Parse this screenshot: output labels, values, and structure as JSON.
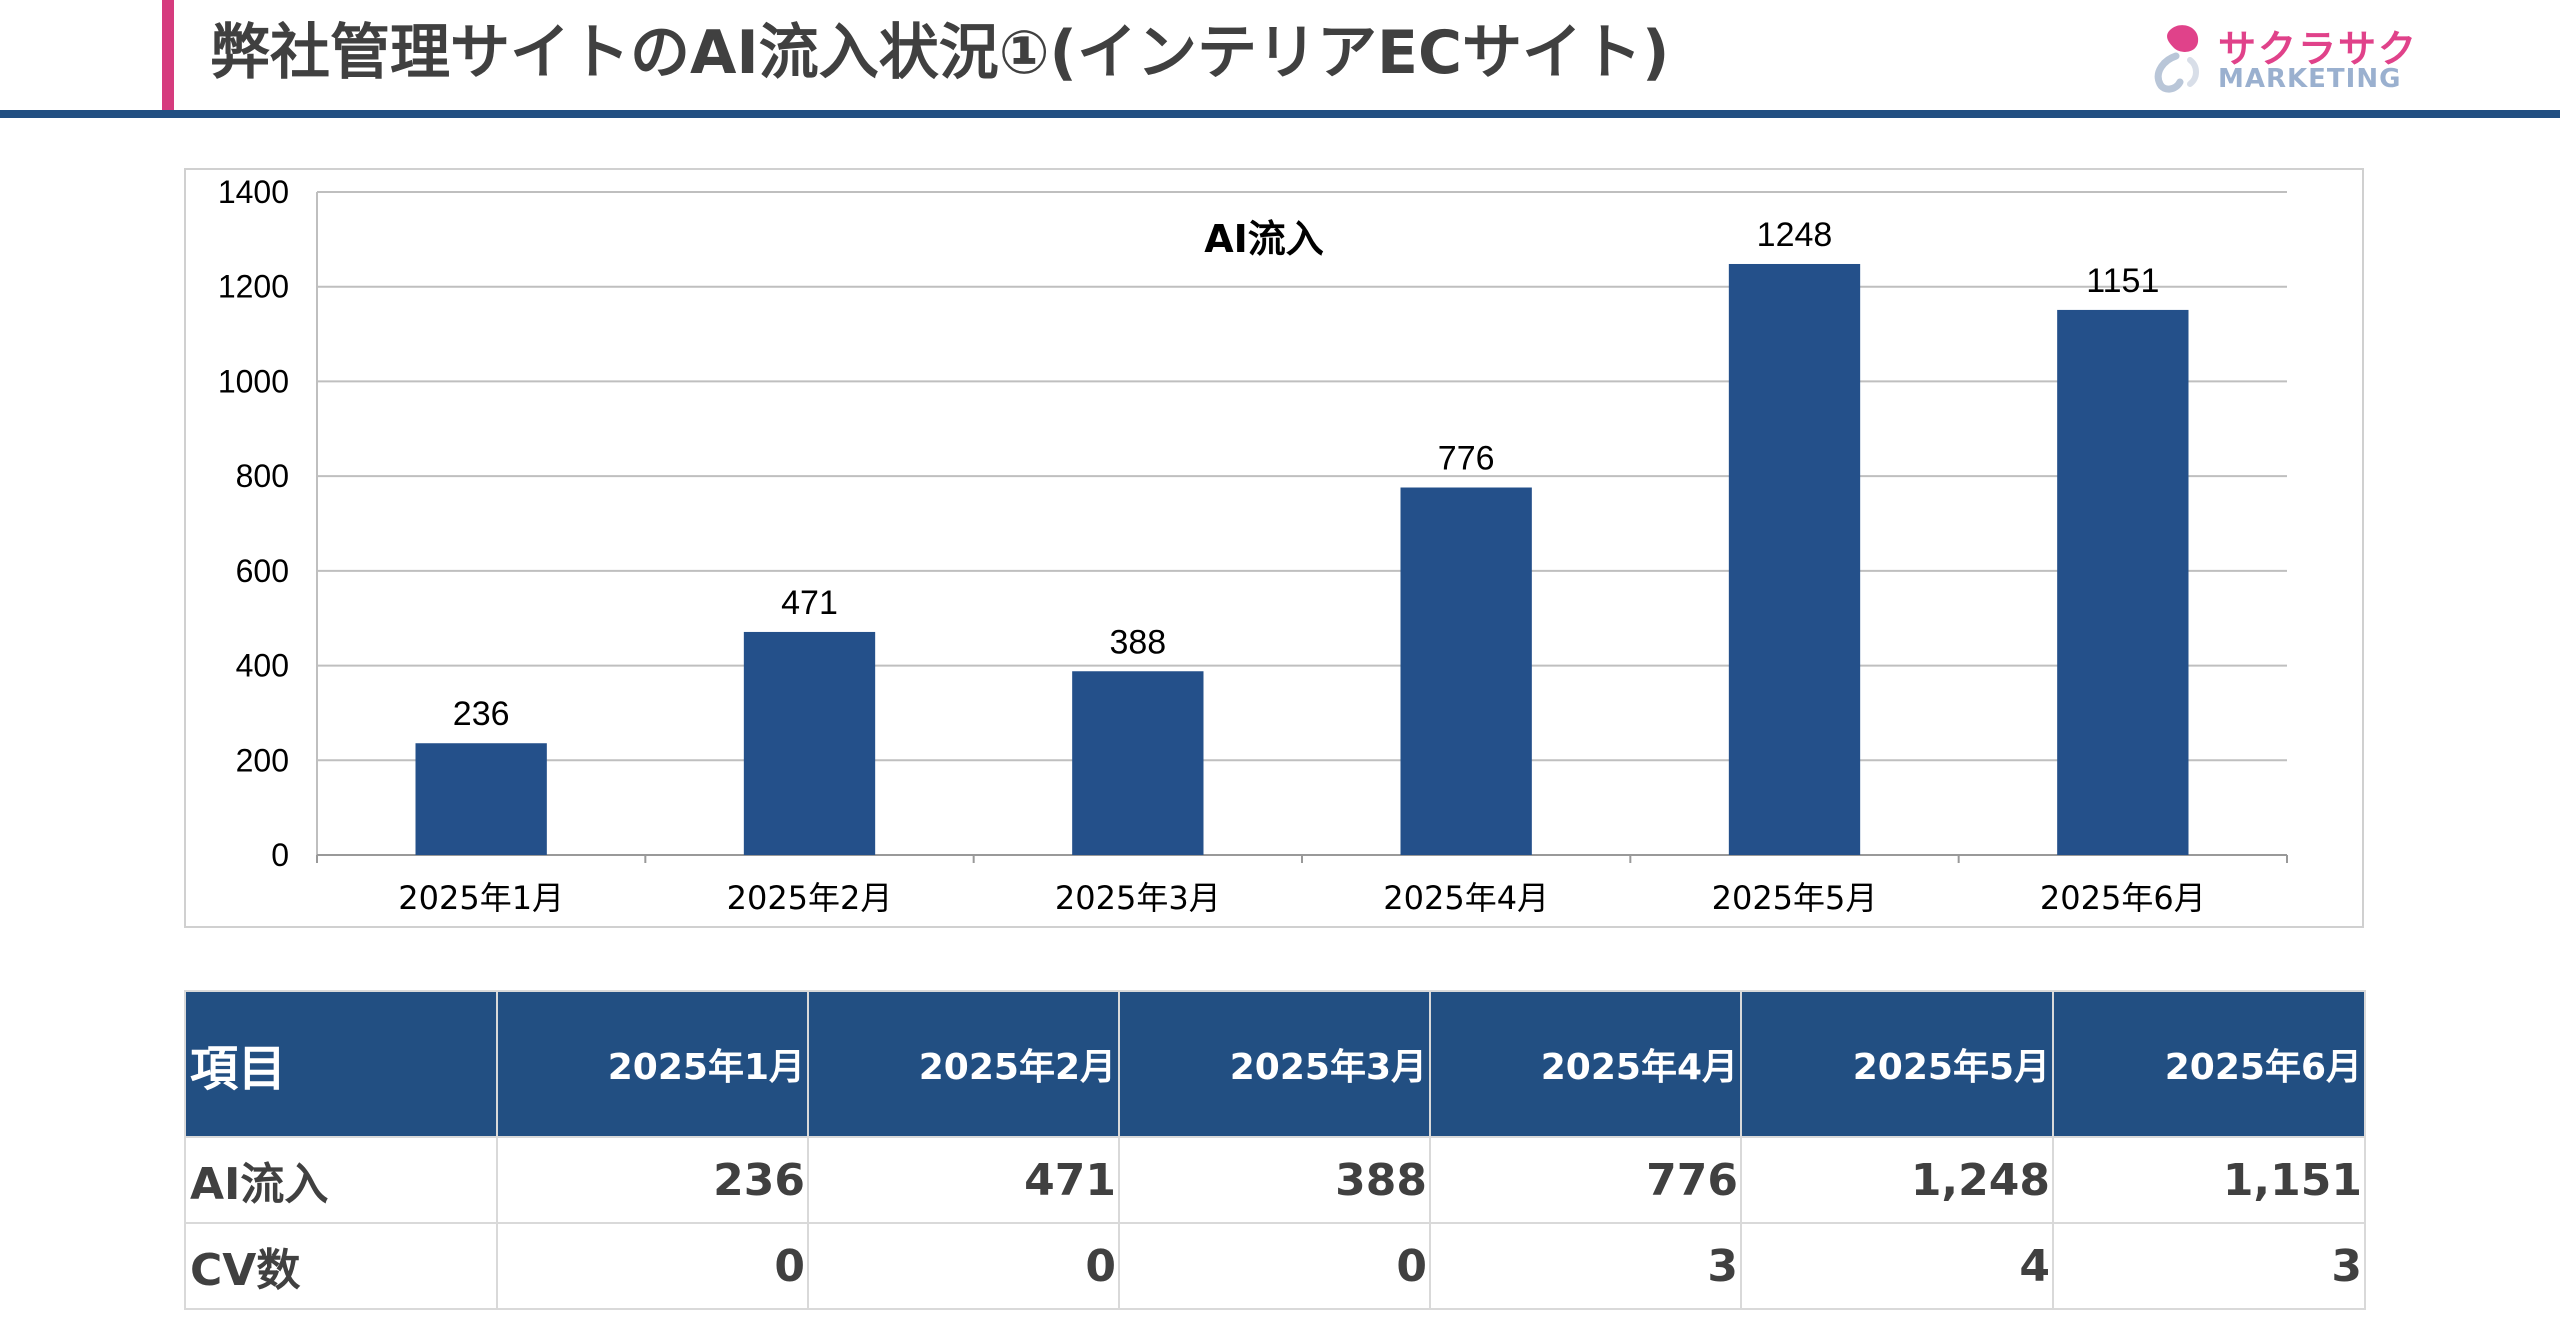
{
  "header": {
    "title": "弊社管理サイトのAI流入状況①(インテリアECサイト)",
    "logo_line1": "サクラサク",
    "logo_line2": "MARKETING",
    "accent_color": "#d63b7e",
    "rule_color": "#224f82"
  },
  "chart_data": {
    "type": "bar",
    "title": "AI流入",
    "categories": [
      "2025年1月",
      "2025年2月",
      "2025年3月",
      "2025年4月",
      "2025年5月",
      "2025年6月"
    ],
    "values": [
      236,
      471,
      388,
      776,
      1248,
      1151
    ],
    "data_labels": [
      "236",
      "471",
      "388",
      "776",
      "1248",
      "1151"
    ],
    "xlabel": "",
    "ylabel": "",
    "ylim": [
      0,
      1400
    ],
    "yticks": [
      0,
      200,
      400,
      600,
      800,
      1000,
      1200,
      1400
    ],
    "grid": true,
    "legend": "none",
    "bar_color": "#24508a"
  },
  "table": {
    "headers": [
      "項目",
      "2025年1月",
      "2025年2月",
      "2025年3月",
      "2025年4月",
      "2025年5月",
      "2025年6月"
    ],
    "rows": [
      [
        "AI流入",
        "236",
        "471",
        "388",
        "776",
        "1,248",
        "1,151"
      ],
      [
        "CV数",
        "0",
        "0",
        "0",
        "3",
        "4",
        "3"
      ]
    ],
    "header_color": "#224f82"
  }
}
